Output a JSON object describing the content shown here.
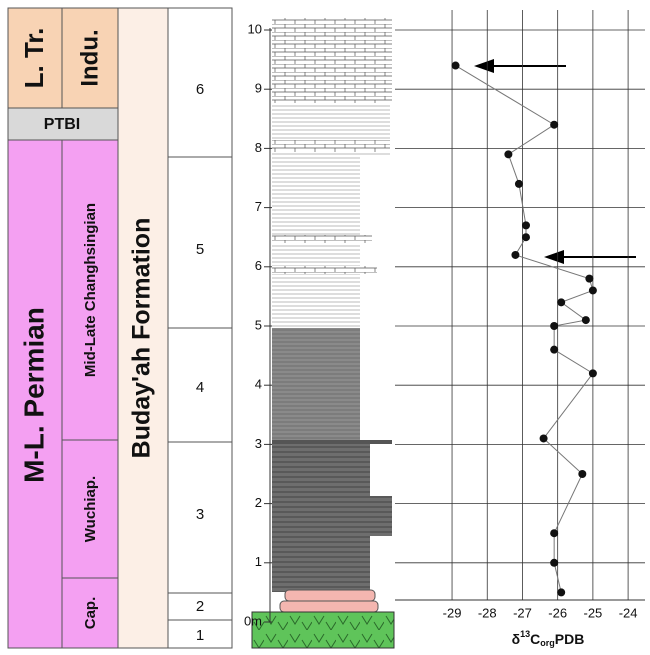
{
  "columns": {
    "systems": [
      "L. Tr.",
      "M-L. Permian"
    ],
    "boundary": "PTBI",
    "stages": [
      "Indu.",
      "Mid-Late Changhsingian",
      "Wuchiap.",
      "Cap."
    ],
    "formation": "Buday'ah Formation",
    "units": [
      "6",
      "5",
      "4",
      "3",
      "2",
      "1"
    ]
  },
  "chart_data": {
    "type": "line",
    "x": [
      -28.9,
      -26.1,
      -27.4,
      -27.1,
      -26.9,
      -26.9,
      -27.2,
      -25.1,
      -25.0,
      -25.9,
      -25.2,
      -26.1,
      -26.1,
      -25.0,
      -26.4,
      -25.3,
      -26.1,
      -26.1,
      -25.9
    ],
    "values": [
      9.4,
      8.4,
      7.9,
      7.4,
      6.7,
      6.5,
      6.2,
      5.8,
      5.6,
      5.4,
      5.1,
      5.0,
      4.6,
      4.2,
      3.1,
      2.5,
      1.5,
      1.0,
      0.5
    ],
    "color": "#777777",
    "marker_color": "#111111",
    "xlim": [
      -30.62,
      -23.52
    ],
    "xticks": [
      -29,
      -28,
      -27,
      -26,
      -25,
      -24
    ],
    "ylim": [
      0,
      10
    ],
    "yticks": [
      {
        "value": 0,
        "label": "0m"
      },
      1,
      2,
      3,
      4,
      5,
      6,
      7,
      8,
      9,
      10
    ],
    "xlabel": {
      "prefix": "δ",
      "sup": "13",
      "main": "C",
      "sub": "org",
      "suffix": "PDB"
    },
    "grid": true
  }
}
